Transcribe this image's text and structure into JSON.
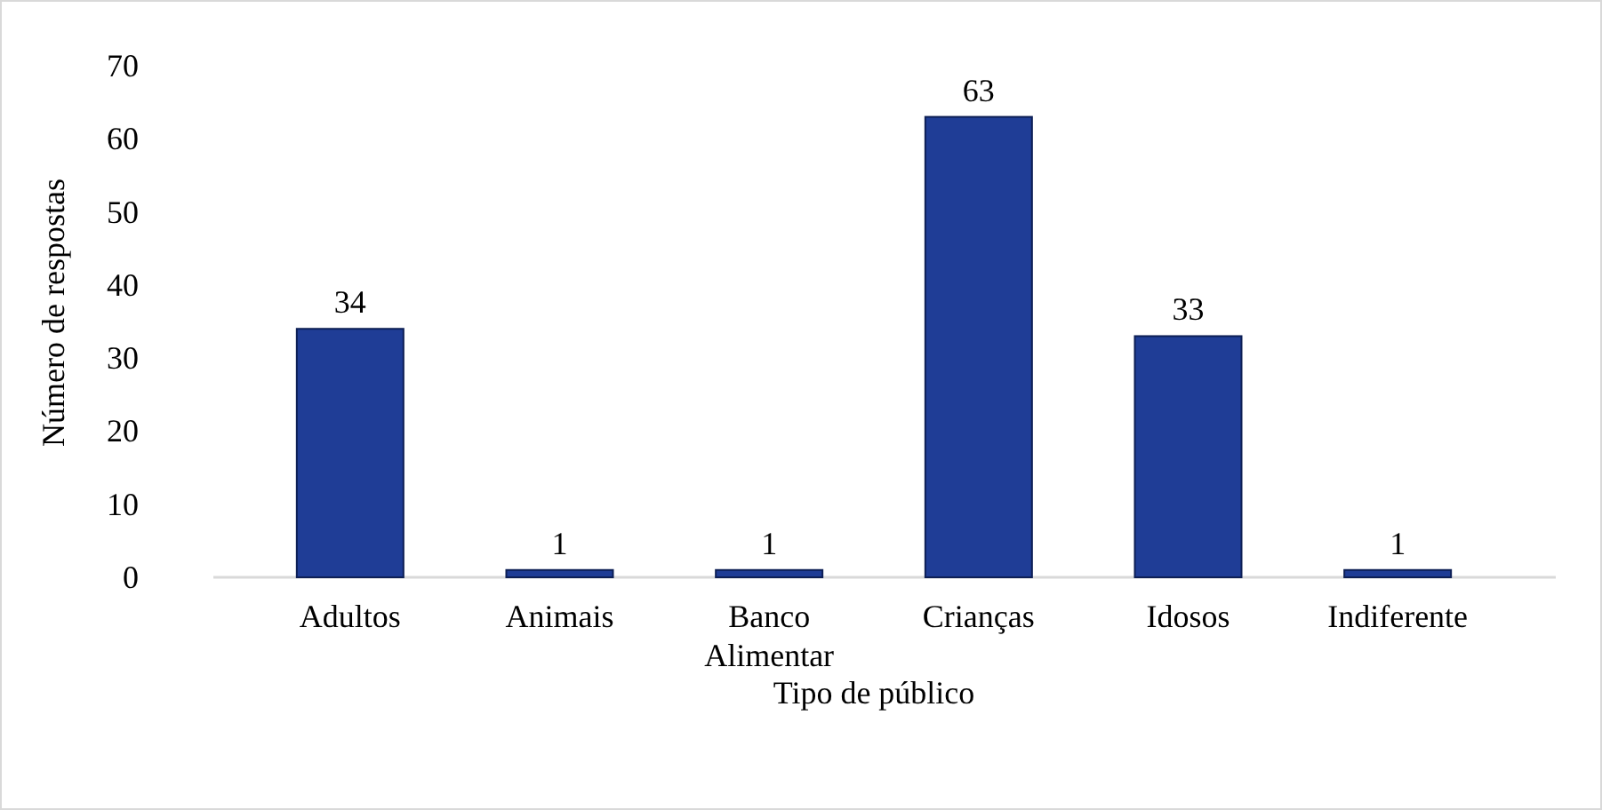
{
  "chart_data": {
    "type": "bar",
    "xlabel": "Tipo de público",
    "ylabel": "Número de respostas",
    "categories": [
      "Adultos",
      "Animais",
      "Banco Alimentar",
      "Crianças",
      "Idosos",
      "Indiferente"
    ],
    "values": [
      34,
      1,
      1,
      63,
      33,
      1
    ],
    "color": "#1f3d96",
    "ylim": [
      0,
      70
    ],
    "yticks": [
      0,
      10,
      20,
      30,
      40,
      50,
      60,
      70
    ],
    "data_labels": true,
    "grid": false
  }
}
